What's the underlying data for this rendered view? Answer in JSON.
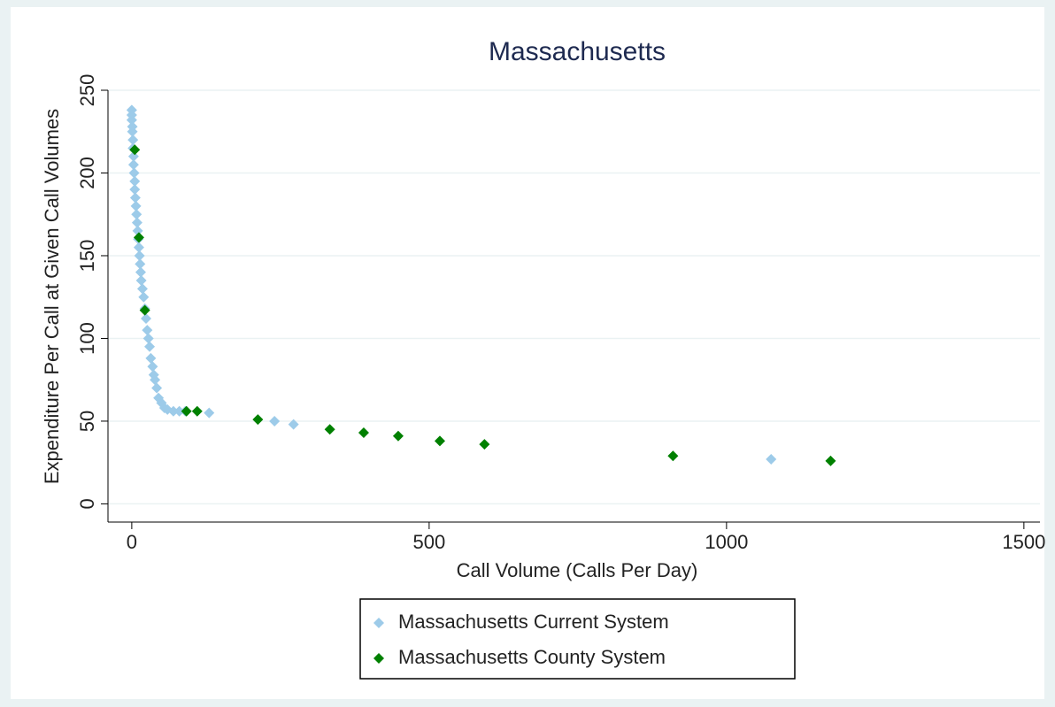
{
  "chart_data": {
    "type": "scatter",
    "title": "Massachusetts",
    "x_label": "Call Volume (Calls Per Day)",
    "y_label": "Expenditure Per Call at Given Call Volumes",
    "xlim": [
      -40,
      1527
    ],
    "ylim": [
      -11,
      250
    ],
    "xticks": [
      0,
      500,
      1000,
      1500
    ],
    "yticks": [
      0,
      50,
      100,
      150,
      200,
      250
    ],
    "grid": true,
    "legend": "bottom",
    "series": [
      {
        "name": "Massachusetts Current System",
        "color": "#9dcbe9",
        "x": [
          0,
          0,
          0,
          1,
          1,
          2,
          2,
          3,
          3,
          4,
          5,
          5,
          6,
          7,
          8,
          9,
          10,
          11,
          12,
          13,
          14,
          15,
          16,
          18,
          20,
          22,
          24,
          26,
          28,
          30,
          32,
          35,
          37,
          39,
          42,
          45,
          50,
          55,
          60,
          70,
          80,
          90,
          130,
          240,
          272,
          1075
        ],
        "y": [
          238,
          235,
          232,
          228,
          225,
          220,
          215,
          210,
          205,
          200,
          195,
          190,
          185,
          180,
          175,
          170,
          165,
          160,
          155,
          150,
          145,
          140,
          135,
          130,
          125,
          118,
          112,
          105,
          100,
          95,
          88,
          83,
          78,
          75,
          70,
          64,
          61,
          58,
          57,
          56,
          56,
          56,
          55,
          50,
          48,
          27
        ]
      },
      {
        "name": "Massachusetts County System",
        "color": "#008000",
        "x": [
          5,
          12,
          22,
          92,
          110,
          212,
          333,
          390,
          448,
          518,
          593,
          910,
          1175
        ],
        "y": [
          214,
          161,
          117,
          56,
          56,
          51,
          45,
          43,
          41,
          38,
          36,
          29,
          26
        ]
      }
    ]
  }
}
